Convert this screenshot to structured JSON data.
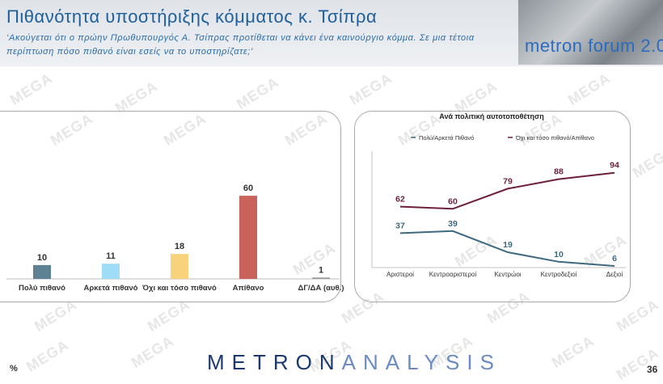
{
  "header": {
    "title": "Πιθανότητα υποστήριξης κόμματος κ. Τσίπρα",
    "subtitle": "‘Ακούγεται ότι ο πρώην Πρωθυπουργός Α. Τσίπρας προτίθεται να κάνει ένα καινούργιο κόμμα. Σε μια τέτοια περίπτωση πόσο πιθανό είναι εσείς να το υποστηρίζατε;’",
    "logo_text": "metron forum 2.0"
  },
  "watermark": "MEGA",
  "footer": {
    "brand_bold": "METRON",
    "brand_thin": "ANALYSIS",
    "percent_sign": "%",
    "page_number": "36"
  },
  "chart_data": [
    {
      "type": "bar",
      "categories": [
        "Πολύ πιθανό",
        "Αρκετά πιθανό",
        "Όχι και τόσο πιθανό",
        "Απίθανο",
        "ΔΓ/ΔΑ (αυθ.)"
      ],
      "values": [
        10,
        11,
        18,
        60,
        1
      ],
      "colors": [
        "#5f8194",
        "#9fdcf7",
        "#f8d37c",
        "#c9625a",
        "#9a9a9a"
      ],
      "ylim": [
        0,
        70
      ]
    },
    {
      "type": "line",
      "title": "Ανά πολιτική αυτοτοποθέτηση",
      "categories": [
        "Αριστεροί",
        "Κεντροαριστεροί",
        "Κεντρώοι",
        "Κεντροδεξιοί",
        "Δεξιοί"
      ],
      "series": [
        {
          "name": "Πολύ/Αρκετά Πιθανό",
          "values": [
            37,
            39,
            19,
            10,
            6
          ],
          "color": "#3d6a80"
        },
        {
          "name": "Όχι και τόσο πιθανό/Απίθανο",
          "values": [
            62,
            60,
            79,
            88,
            94
          ],
          "color": "#6e1f3e"
        }
      ],
      "ylim": [
        0,
        100
      ],
      "legend": "top"
    }
  ]
}
